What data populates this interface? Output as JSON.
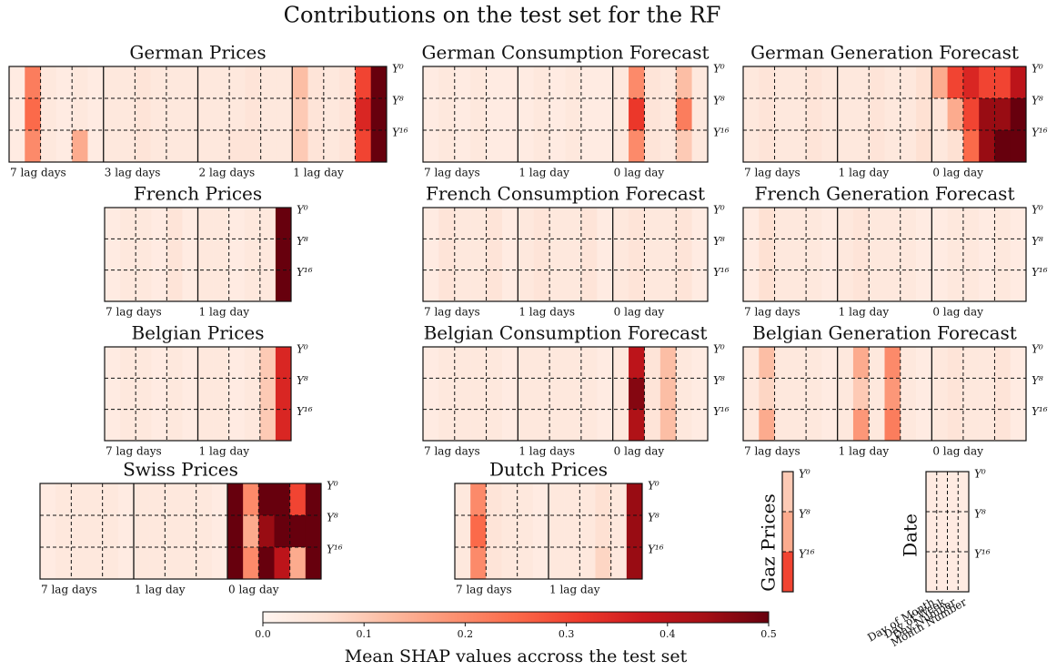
{
  "chart_data": {
    "type": "heatmap",
    "title": "Contributions on the test set for the RF",
    "colormap": "Reds",
    "row_labels": [
      "Y⁰",
      "Y⁸",
      "Y¹⁶"
    ],
    "colorbar": {
      "label": "Mean SHAP values accross the test set",
      "lim": [
        0,
        0.5
      ],
      "ticks": [
        {
          "value": 0,
          "label": "0.0"
        },
        0.1,
        0.2,
        0.3,
        0.4,
        0.5
      ]
    },
    "panels": [
      {
        "title": "German Prices",
        "block_labels": [
          "7 lag days",
          "3 lag days",
          "2 lag days",
          "1 lag day"
        ],
        "values": [
          [
            0.03,
            0.22,
            0.04,
            0.03,
            0.04,
            0.03,
            0.04,
            0.04,
            0.05,
            0.04,
            0.04,
            0.04,
            0.04,
            0.04,
            0.04,
            0.05,
            0.04,
            0.04,
            0.12,
            0.05,
            0.04,
            0.05,
            0.3,
            0.5
          ],
          [
            0.03,
            0.25,
            0.04,
            0.03,
            0.04,
            0.03,
            0.04,
            0.04,
            0.05,
            0.04,
            0.04,
            0.04,
            0.04,
            0.04,
            0.04,
            0.05,
            0.04,
            0.04,
            0.1,
            0.05,
            0.04,
            0.05,
            0.35,
            0.5
          ],
          [
            0.03,
            0.2,
            0.04,
            0.03,
            0.15,
            0.03,
            0.04,
            0.04,
            0.05,
            0.04,
            0.04,
            0.04,
            0.04,
            0.04,
            0.05,
            0.05,
            0.04,
            0.04,
            0.1,
            0.05,
            0.04,
            0.05,
            0.3,
            0.5
          ]
        ]
      },
      {
        "title": "German Consumption Forecast",
        "block_labels": [
          "7 lag days",
          "1 lag day",
          "0 lag day"
        ],
        "values": [
          [
            0.03,
            0.04,
            0.03,
            0.04,
            0.03,
            0.03,
            0.03,
            0.04,
            0.03,
            0.04,
            0.03,
            0.03,
            0.04,
            0.2,
            0.05,
            0.04,
            0.12,
            0.04
          ],
          [
            0.03,
            0.04,
            0.03,
            0.04,
            0.03,
            0.03,
            0.03,
            0.04,
            0.03,
            0.04,
            0.03,
            0.03,
            0.04,
            0.32,
            0.05,
            0.04,
            0.22,
            0.04
          ],
          [
            0.03,
            0.04,
            0.03,
            0.04,
            0.03,
            0.03,
            0.03,
            0.04,
            0.03,
            0.04,
            0.03,
            0.03,
            0.04,
            0.2,
            0.05,
            0.04,
            0.1,
            0.04
          ]
        ]
      },
      {
        "title": "German Generation Forecast",
        "block_labels": [
          "7 lag days",
          "1 lag day",
          "0 lag day"
        ],
        "values": [
          [
            0.04,
            0.05,
            0.04,
            0.04,
            0.05,
            0.04,
            0.04,
            0.04,
            0.05,
            0.04,
            0.04,
            0.06,
            0.15,
            0.3,
            0.35,
            0.3,
            0.3,
            0.4
          ],
          [
            0.04,
            0.05,
            0.04,
            0.04,
            0.05,
            0.04,
            0.04,
            0.04,
            0.05,
            0.04,
            0.04,
            0.06,
            0.05,
            0.15,
            0.3,
            0.45,
            0.45,
            0.5
          ],
          [
            0.04,
            0.05,
            0.04,
            0.04,
            0.05,
            0.04,
            0.04,
            0.04,
            0.05,
            0.04,
            0.04,
            0.06,
            0.04,
            0.06,
            0.25,
            0.45,
            0.5,
            0.5
          ]
        ]
      },
      {
        "title": "French Prices",
        "block_labels": [
          "7 lag days",
          "1 lag day"
        ],
        "values": [
          [
            0.03,
            0.04,
            0.04,
            0.03,
            0.05,
            0.03,
            0.04,
            0.04,
            0.03,
            0.04,
            0.04,
            0.5
          ],
          [
            0.03,
            0.04,
            0.04,
            0.03,
            0.05,
            0.03,
            0.04,
            0.04,
            0.03,
            0.04,
            0.04,
            0.5
          ],
          [
            0.03,
            0.04,
            0.04,
            0.03,
            0.05,
            0.03,
            0.04,
            0.04,
            0.03,
            0.04,
            0.04,
            0.5
          ]
        ]
      },
      {
        "title": "French Consumption Forecast",
        "block_labels": [
          "7 lag days",
          "1 lag days",
          "0 lag day"
        ],
        "values": [
          [
            0.03,
            0.05,
            0.04,
            0.04,
            0.05,
            0.03,
            0.04,
            0.05,
            0.04,
            0.04,
            0.05,
            0.03,
            0.04,
            0.05,
            0.04,
            0.04,
            0.05,
            0.03
          ],
          [
            0.03,
            0.05,
            0.04,
            0.04,
            0.05,
            0.03,
            0.04,
            0.05,
            0.04,
            0.04,
            0.05,
            0.03,
            0.04,
            0.05,
            0.04,
            0.04,
            0.05,
            0.03
          ],
          [
            0.03,
            0.05,
            0.04,
            0.04,
            0.05,
            0.03,
            0.04,
            0.05,
            0.04,
            0.04,
            0.05,
            0.03,
            0.04,
            0.05,
            0.04,
            0.04,
            0.05,
            0.03
          ]
        ]
      },
      {
        "title": "French Generation Forecast",
        "block_labels": [
          "7 lag days",
          "1 lag day",
          "0 lag day"
        ],
        "values": [
          [
            0.03,
            0.06,
            0.04,
            0.04,
            0.04,
            0.03,
            0.04,
            0.05,
            0.04,
            0.04,
            0.04,
            0.03,
            0.03,
            0.04,
            0.04,
            0.03,
            0.04,
            0.03
          ],
          [
            0.03,
            0.06,
            0.04,
            0.04,
            0.04,
            0.03,
            0.04,
            0.05,
            0.04,
            0.04,
            0.04,
            0.03,
            0.03,
            0.04,
            0.04,
            0.03,
            0.04,
            0.03
          ],
          [
            0.03,
            0.06,
            0.04,
            0.04,
            0.04,
            0.03,
            0.04,
            0.05,
            0.04,
            0.04,
            0.04,
            0.03,
            0.03,
            0.04,
            0.04,
            0.03,
            0.04,
            0.03
          ]
        ]
      },
      {
        "title": "Belgian Prices",
        "block_labels": [
          "7 lag days",
          "1 lag day"
        ],
        "values": [
          [
            0.03,
            0.04,
            0.04,
            0.03,
            0.04,
            0.03,
            0.04,
            0.04,
            0.03,
            0.04,
            0.1,
            0.35
          ],
          [
            0.03,
            0.04,
            0.04,
            0.03,
            0.04,
            0.03,
            0.04,
            0.04,
            0.03,
            0.04,
            0.1,
            0.35
          ],
          [
            0.03,
            0.04,
            0.04,
            0.03,
            0.04,
            0.03,
            0.04,
            0.04,
            0.03,
            0.04,
            0.1,
            0.35
          ]
        ]
      },
      {
        "title": "Belgian Consumption Forecast",
        "block_labels": [
          "7 lag days",
          "1 lag days",
          "0 lag day"
        ],
        "values": [
          [
            0.03,
            0.04,
            0.04,
            0.04,
            0.04,
            0.03,
            0.04,
            0.04,
            0.04,
            0.04,
            0.04,
            0.03,
            0.04,
            0.4,
            0.05,
            0.12,
            0.04,
            0.03
          ],
          [
            0.03,
            0.04,
            0.04,
            0.04,
            0.04,
            0.03,
            0.04,
            0.04,
            0.04,
            0.04,
            0.04,
            0.03,
            0.04,
            0.47,
            0.05,
            0.12,
            0.04,
            0.03
          ],
          [
            0.03,
            0.04,
            0.04,
            0.04,
            0.04,
            0.03,
            0.04,
            0.04,
            0.04,
            0.04,
            0.04,
            0.03,
            0.04,
            0.42,
            0.05,
            0.12,
            0.04,
            0.03
          ]
        ]
      },
      {
        "title": "Belgian Generation Forecast",
        "block_labels": [
          "7 lag days",
          "1 lag day",
          "0 lag day"
        ],
        "values": [
          [
            0.04,
            0.12,
            0.04,
            0.04,
            0.04,
            0.03,
            0.04,
            0.15,
            0.04,
            0.2,
            0.04,
            0.03,
            0.04,
            0.05,
            0.04,
            0.04,
            0.05,
            0.03
          ],
          [
            0.04,
            0.08,
            0.04,
            0.04,
            0.04,
            0.03,
            0.04,
            0.1,
            0.04,
            0.18,
            0.04,
            0.03,
            0.04,
            0.05,
            0.04,
            0.04,
            0.05,
            0.03
          ],
          [
            0.04,
            0.15,
            0.04,
            0.04,
            0.04,
            0.03,
            0.04,
            0.18,
            0.04,
            0.22,
            0.04,
            0.03,
            0.04,
            0.05,
            0.04,
            0.04,
            0.05,
            0.03
          ]
        ]
      },
      {
        "title": "Swiss Prices",
        "block_labels": [
          "7 lag days",
          "1 lag day",
          "0 lag day"
        ],
        "values": [
          [
            0.03,
            0.04,
            0.04,
            0.04,
            0.04,
            0.03,
            0.04,
            0.04,
            0.04,
            0.04,
            0.04,
            0.03,
            0.5,
            0.2,
            0.5,
            0.5,
            0.3,
            0.5
          ],
          [
            0.03,
            0.04,
            0.04,
            0.04,
            0.04,
            0.03,
            0.04,
            0.04,
            0.04,
            0.04,
            0.04,
            0.03,
            0.5,
            0.15,
            0.45,
            0.5,
            0.5,
            0.5
          ],
          [
            0.03,
            0.04,
            0.04,
            0.04,
            0.04,
            0.03,
            0.04,
            0.04,
            0.04,
            0.04,
            0.04,
            0.03,
            0.5,
            0.2,
            0.5,
            0.4,
            0.15,
            0.5
          ]
        ]
      },
      {
        "title": "Dutch Prices",
        "block_labels": [
          "7 lag days",
          "1 lag day"
        ],
        "values": [
          [
            0.04,
            0.2,
            0.05,
            0.04,
            0.04,
            0.03,
            0.04,
            0.04,
            0.04,
            0.06,
            0.04,
            0.45
          ],
          [
            0.04,
            0.25,
            0.05,
            0.04,
            0.04,
            0.03,
            0.04,
            0.04,
            0.04,
            0.06,
            0.04,
            0.45
          ],
          [
            0.04,
            0.2,
            0.05,
            0.04,
            0.04,
            0.03,
            0.04,
            0.04,
            0.04,
            0.08,
            0.04,
            0.45
          ]
        ]
      },
      {
        "title": "Gaz Prices",
        "values": [
          [
            0.1
          ],
          [
            0.15
          ],
          [
            0.3
          ]
        ]
      },
      {
        "title": "Date",
        "column_labels": [
          "Day of Month",
          "Day of Week",
          "Day Number",
          "Month Number"
        ],
        "values": [
          [
            0.03,
            0.03,
            0.03,
            0.03
          ],
          [
            0.03,
            0.03,
            0.03,
            0.03
          ],
          [
            0.03,
            0.03,
            0.03,
            0.03
          ]
        ]
      }
    ]
  }
}
